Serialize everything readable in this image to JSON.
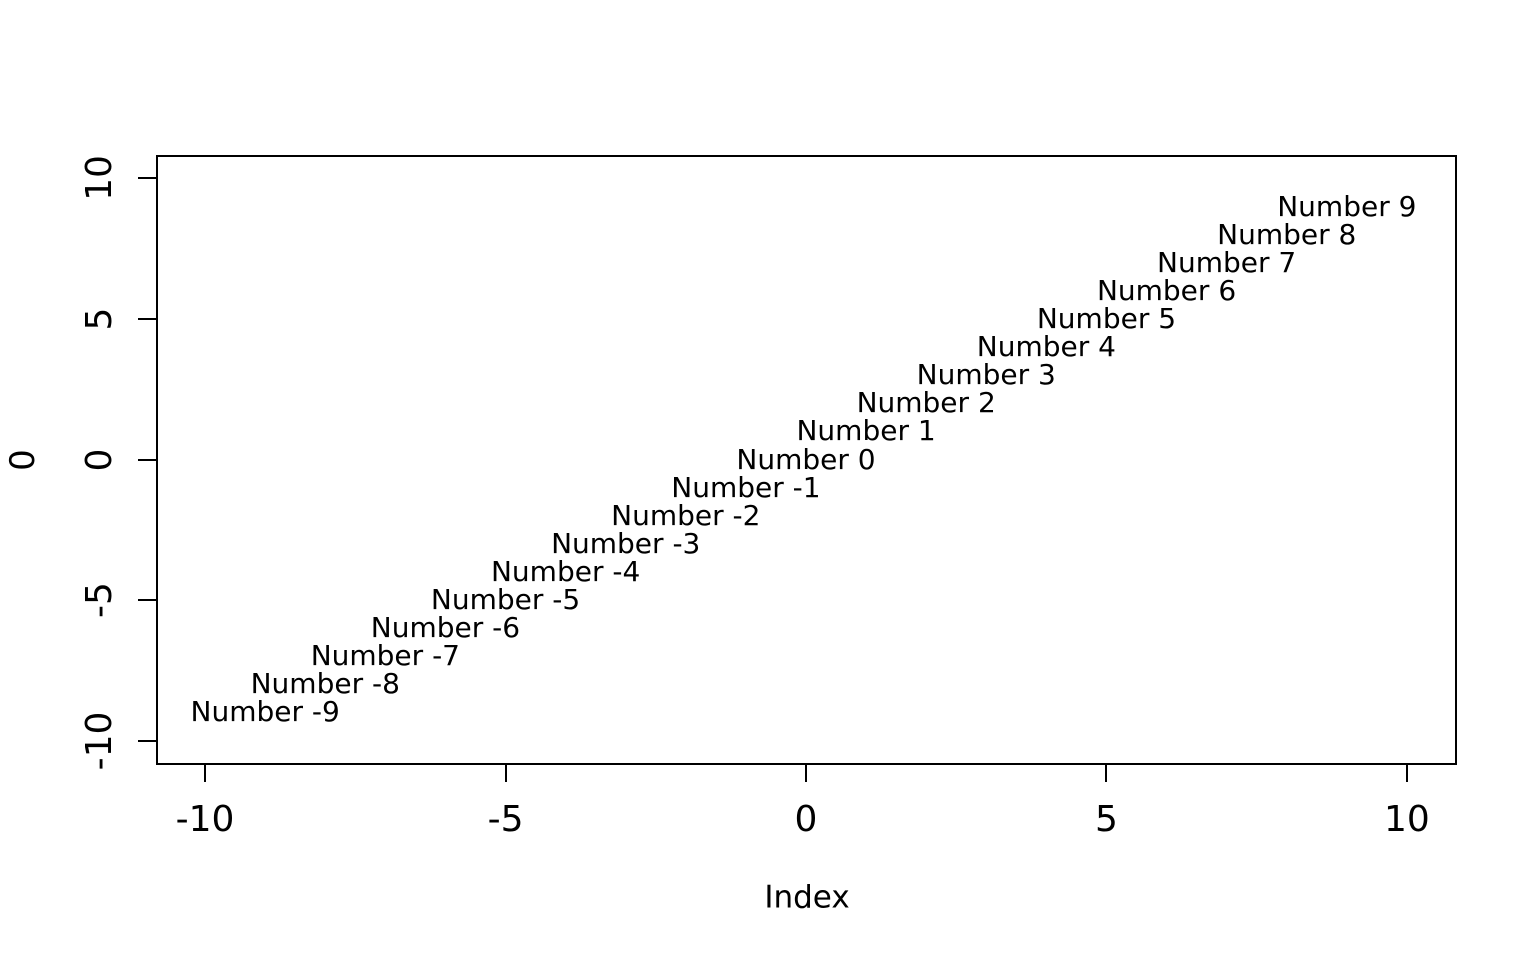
{
  "figure": {
    "background": "#ffffff",
    "foreground": "#000000"
  },
  "chart_data": {
    "type": "scatter",
    "subtype": "text-label-points",
    "title": "",
    "xlabel": "Index",
    "ylabel": "0",
    "xlim": [
      -10.8,
      10.8
    ],
    "ylim": [
      -10.8,
      10.8
    ],
    "x_ticks": [
      -10,
      -5,
      0,
      5,
      10
    ],
    "y_ticks": [
      -10,
      -5,
      0,
      5,
      10
    ],
    "grid": false,
    "legend": "none",
    "points": [
      {
        "x": -9,
        "y": -9,
        "label": "Number -9"
      },
      {
        "x": -8,
        "y": -8,
        "label": "Number -8"
      },
      {
        "x": -7,
        "y": -7,
        "label": "Number -7"
      },
      {
        "x": -6,
        "y": -6,
        "label": "Number -6"
      },
      {
        "x": -5,
        "y": -5,
        "label": "Number -5"
      },
      {
        "x": -4,
        "y": -4,
        "label": "Number -4"
      },
      {
        "x": -3,
        "y": -3,
        "label": "Number -3"
      },
      {
        "x": -2,
        "y": -2,
        "label": "Number -2"
      },
      {
        "x": -1,
        "y": -1,
        "label": "Number -1"
      },
      {
        "x": 0,
        "y": 0,
        "label": "Number 0"
      },
      {
        "x": 1,
        "y": 1,
        "label": "Number 1"
      },
      {
        "x": 2,
        "y": 2,
        "label": "Number 2"
      },
      {
        "x": 3,
        "y": 3,
        "label": "Number 3"
      },
      {
        "x": 4,
        "y": 4,
        "label": "Number 4"
      },
      {
        "x": 5,
        "y": 5,
        "label": "Number 5"
      },
      {
        "x": 6,
        "y": 6,
        "label": "Number 6"
      },
      {
        "x": 7,
        "y": 7,
        "label": "Number 7"
      },
      {
        "x": 8,
        "y": 8,
        "label": "Number 8"
      },
      {
        "x": 9,
        "y": 9,
        "label": "Number 9"
      }
    ]
  }
}
